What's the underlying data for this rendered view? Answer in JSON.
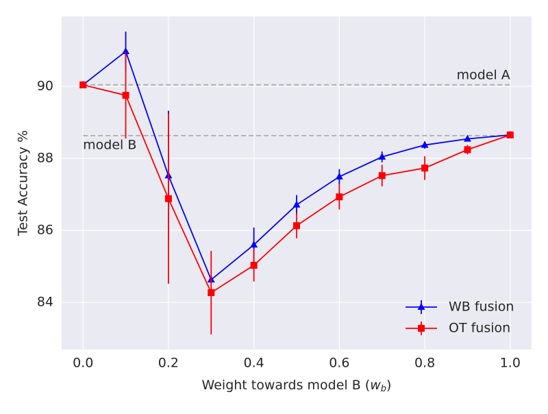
{
  "chart_data": {
    "type": "errorbar-line",
    "x_label": [
      "Weight towards model B (",
      "w",
      "b",
      ")"
    ],
    "y_label": "Test Accuracy %",
    "x": [
      0.0,
      0.1,
      0.2,
      0.3,
      0.4,
      0.5,
      0.6,
      0.7,
      0.8,
      0.9,
      1.0
    ],
    "series": [
      {
        "name": "WB fusion",
        "color": "#0000ff",
        "marker": "triangle",
        "values": [
          90.04,
          90.97,
          87.52,
          84.63,
          85.6,
          86.71,
          87.49,
          88.04,
          88.37,
          88.54,
          88.65
        ],
        "errors": [
          0,
          0.55,
          1.8,
          0.1,
          0.48,
          0.27,
          0.21,
          0.15,
          0.1,
          0.05,
          0
        ]
      },
      {
        "name": "OT fusion",
        "color": "#ff0000",
        "marker": "square",
        "values": [
          90.04,
          89.75,
          86.88,
          84.27,
          85.03,
          86.13,
          86.93,
          87.52,
          87.73,
          88.24,
          88.65
        ],
        "errors": [
          0,
          1.2,
          2.36,
          1.16,
          0.45,
          0.35,
          0.35,
          0.3,
          0.33,
          0.13,
          0
        ]
      }
    ],
    "reference_lines": [
      {
        "label": "model A",
        "value": 90.04
      },
      {
        "label": "model B",
        "value": 88.63
      }
    ],
    "xlim": [
      -0.05,
      1.05
    ],
    "ylim": [
      82.69,
      91.94
    ],
    "xticks": [
      {
        "value": 0,
        "label": "0.0"
      },
      0.2,
      0.4,
      0.6,
      0.8,
      {
        "value": 1,
        "label": "1.0"
      }
    ],
    "yticks": [
      84,
      86,
      88,
      90
    ],
    "grid": true,
    "legend": "lower right"
  }
}
